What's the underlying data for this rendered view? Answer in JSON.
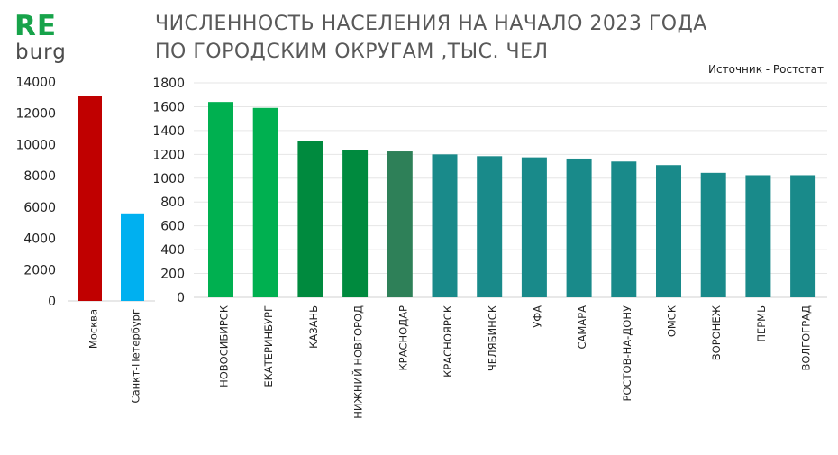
{
  "brand": {
    "logo_main": "RE",
    "logo_sub": "burg",
    "logo_color": "#17a34a"
  },
  "header": {
    "title_line1": "ЧИСЛЕННОСТЬ НАСЕЛЕНИЯ НА НАЧАЛО 2023 ГОДА",
    "title_line2": "ПО ГОРОДСКИМ ОКРУГАМ ,ТЫС. ЧЕЛ",
    "source": "Источник - Ростстат"
  },
  "chart_data": [
    {
      "type": "bar",
      "ylim": [
        0,
        14000
      ],
      "yticks": [
        0,
        2000,
        4000,
        6000,
        8000,
        10000,
        12000,
        14000
      ],
      "grid": false,
      "categories": [
        "Москва",
        "Санкт-Петербург"
      ],
      "values": [
        13100,
        5600
      ],
      "colors": [
        "#c00000",
        "#00b0f0"
      ]
    },
    {
      "type": "bar",
      "ylim": [
        0,
        1800
      ],
      "yticks": [
        0,
        200,
        400,
        600,
        800,
        1000,
        1200,
        1400,
        1600,
        1800
      ],
      "grid": true,
      "categories": [
        "НОВОСИБИРСК",
        "ЕКАТЕРИНБУРГ",
        "КАЗАНЬ",
        "НИЖНИЙ НОВГОРОД",
        "КРАСНОДАР",
        "КРАСНОЯРСК",
        "ЧЕЛЯБИНСК",
        "УФА",
        "САМАРА",
        "РОСТОВ-НА-ДОНУ",
        "ОМСК",
        "ВОРОНЕЖ",
        "ПЕРМЬ",
        "ВОЛГОГРАД"
      ],
      "values": [
        1640,
        1590,
        1315,
        1235,
        1225,
        1200,
        1185,
        1175,
        1165,
        1140,
        1110,
        1045,
        1025,
        1025
      ],
      "colors": [
        "#00b050",
        "#00b050",
        "#008a3e",
        "#008a3e",
        "#2e8058",
        "#198a8a",
        "#198a8a",
        "#198a8a",
        "#198a8a",
        "#198a8a",
        "#198a8a",
        "#198a8a",
        "#198a8a",
        "#198a8a"
      ]
    }
  ]
}
